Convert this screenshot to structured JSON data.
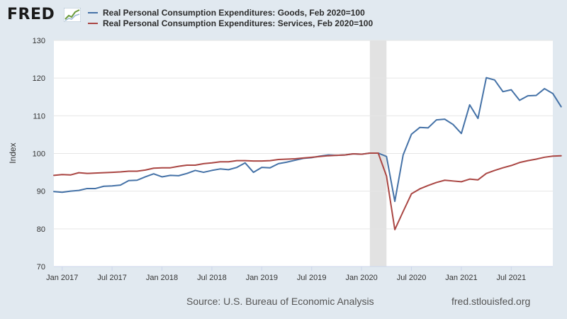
{
  "header": {
    "logo_text": "FRED",
    "logo_mark": "trend-line-icon"
  },
  "legend": [
    {
      "name": "Real Personal Consumption Expenditures: Goods, Feb 2020=100",
      "color": "#4572a7"
    },
    {
      "name": "Real Personal Consumption Expenditures: Services, Feb 2020=100",
      "color": "#aa4643"
    }
  ],
  "footer": {
    "source": "Source: U.S. Bureau of Economic Analysis",
    "url": "fred.stlouisfed.org"
  },
  "chart_data": {
    "type": "line",
    "title": "",
    "xlabel": "",
    "ylabel": "Index",
    "ylim": [
      70,
      130
    ],
    "yticks": [
      "70",
      "80",
      "90",
      "100",
      "110",
      "120",
      "130"
    ],
    "xticks": [
      {
        "label": "Jan 2017",
        "date": "2017-01"
      },
      {
        "label": "Jul 2017",
        "date": "2017-07"
      },
      {
        "label": "Jan 2018",
        "date": "2018-01"
      },
      {
        "label": "Jul 2018",
        "date": "2018-07"
      },
      {
        "label": "Jan 2019",
        "date": "2019-01"
      },
      {
        "label": "Jul 2019",
        "date": "2019-07"
      },
      {
        "label": "Jan 2020",
        "date": "2020-01"
      },
      {
        "label": "Jul 2020",
        "date": "2020-07"
      },
      {
        "label": "Jan 2021",
        "date": "2021-01"
      },
      {
        "label": "Jul 2021",
        "date": "2021-07"
      }
    ],
    "x_start": "2016-12",
    "x_end": "2021-12",
    "grid": true,
    "recession_shading": {
      "start": "2020-02",
      "end": "2020-04",
      "color": "#e2e2e2"
    },
    "series": [
      {
        "name": "Real Personal Consumption Expenditures: Goods, Feb 2020=100",
        "color": "#4572a7",
        "values": [
          89.9,
          89.7,
          90.0,
          90.2,
          90.7,
          90.7,
          91.3,
          91.4,
          91.6,
          92.8,
          92.9,
          93.8,
          94.6,
          93.8,
          94.2,
          94.1,
          94.7,
          95.5,
          95.0,
          95.5,
          95.9,
          95.7,
          96.3,
          97.5,
          95.0,
          96.3,
          96.2,
          97.3,
          97.7,
          98.2,
          98.7,
          98.9,
          99.3,
          99.6,
          99.5,
          99.6,
          99.9,
          99.8,
          100.1,
          100.1,
          99.2,
          87.3,
          99.6,
          105.1,
          106.9,
          106.8,
          108.9,
          109.1,
          107.7,
          105.3,
          112.9,
          109.3,
          120.1,
          119.5,
          116.4,
          116.9,
          114.1,
          115.3,
          115.4,
          117.2,
          115.9,
          112.4
        ]
      },
      {
        "name": "Real Personal Consumption Expenditures: Services, Feb 2020=100",
        "color": "#aa4643",
        "values": [
          94.2,
          94.4,
          94.3,
          94.9,
          94.7,
          94.8,
          94.9,
          95.0,
          95.1,
          95.3,
          95.3,
          95.6,
          96.1,
          96.2,
          96.2,
          96.6,
          96.9,
          96.9,
          97.3,
          97.5,
          97.8,
          97.8,
          98.1,
          98.1,
          98.0,
          98.0,
          98.1,
          98.4,
          98.5,
          98.6,
          98.8,
          99.0,
          99.2,
          99.4,
          99.5,
          99.6,
          99.9,
          99.8,
          100.1,
          100.1,
          94.0,
          79.8,
          84.6,
          89.3,
          90.6,
          91.5,
          92.3,
          92.9,
          92.7,
          92.5,
          93.2,
          93.0,
          94.7,
          95.5,
          96.2,
          96.8,
          97.6,
          98.1,
          98.5,
          99.0,
          99.3,
          99.4
        ]
      }
    ]
  }
}
